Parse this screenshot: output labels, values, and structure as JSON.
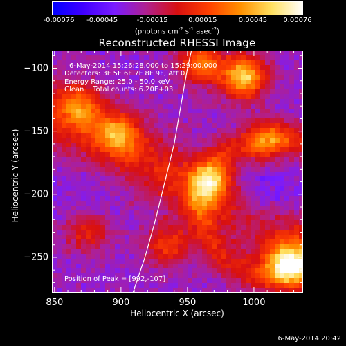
{
  "colorbar": {
    "tick_labels": [
      "-0.00076",
      "-0.00045",
      "-0.00015",
      "0.00015",
      "0.00045",
      "0.00076"
    ],
    "unit_label_html": "(photons cm<sup>-2</sup> s<sup>-1</sup> asec<sup>-2</sup>)",
    "colors": [
      "#0000ff",
      "#4000ff",
      "#7a1cff",
      "#b02090",
      "#d81010",
      "#ff4000",
      "#ff9000",
      "#ffe060",
      "#ffffff"
    ]
  },
  "plot": {
    "title": "Reconstructed RHESSI Image",
    "annotation": {
      "time": "6-May-2014 15:26:28.000 to 15:29:00.000",
      "detectors": "Detectors: 3F 5F 6F 7F 8F 9F, Att 0",
      "energy": "Energy Range: 25.0 - 50.0 keV",
      "clean": "Clean    Total counts: 6.20E+03",
      "peak": "Position of Peak = [992,-107]"
    }
  },
  "footer": {
    "datestamp": "6-May-2014 20:42"
  },
  "chart_data": {
    "type": "heatmap",
    "title": "Reconstructed RHESSI Image",
    "xlabel": "Heliocentric X (arcsec)",
    "ylabel": "Heliocentric Y (arcsec)",
    "xlim": [
      848,
      1037
    ],
    "ylim": [
      -278,
      -86
    ],
    "x_ticks": [
      850,
      900,
      950,
      1000
    ],
    "y_ticks": [
      -100,
      -150,
      -200,
      -250
    ],
    "colorbar_range": [
      -0.00076,
      0.00076
    ],
    "peak": {
      "x": 992,
      "y": -107
    },
    "limb_curve": [
      [
        909,
        -278
      ],
      [
        918,
        -250
      ],
      [
        926,
        -220
      ],
      [
        933,
        -190
      ],
      [
        940,
        -160
      ],
      [
        945,
        -130
      ],
      [
        950,
        -100
      ],
      [
        953,
        -86
      ]
    ],
    "hotspots": [
      {
        "x": 992,
        "y": -107,
        "level": 1.0
      },
      {
        "x": 1025,
        "y": -255,
        "level": 0.95
      },
      {
        "x": 960,
        "y": -96,
        "level": 0.7
      },
      {
        "x": 898,
        "y": -152,
        "level": 0.6
      },
      {
        "x": 870,
        "y": -130,
        "level": 0.55
      },
      {
        "x": 968,
        "y": -190,
        "level": 0.55
      },
      {
        "x": 1010,
        "y": -160,
        "level": 0.5
      },
      {
        "x": 935,
        "y": -240,
        "level": 0.5
      },
      {
        "x": 875,
        "y": -230,
        "level": 0.4
      }
    ]
  }
}
